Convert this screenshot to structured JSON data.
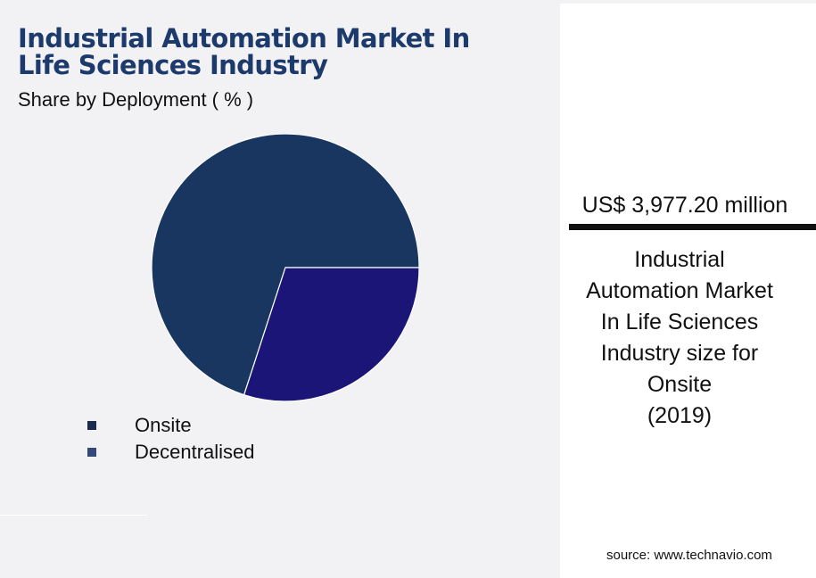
{
  "header": {
    "title_line1": "Industrial Automation Market In",
    "title_line2": "Life Sciences Industry",
    "subtitle": "Share by Deployment ( % )"
  },
  "chart_data": {
    "type": "pie",
    "categories": [
      "Onsite",
      "Decentralised"
    ],
    "values": [
      70,
      30
    ],
    "colors": [
      "#183660",
      "#1b1578"
    ],
    "start_angle_deg": 0
  },
  "legend": [
    {
      "label": "Onsite",
      "color": "#1b2a4f"
    },
    {
      "label": "Decentralised",
      "color": "#34497a"
    }
  ],
  "info_panel": {
    "value": "US$ 3,977.20 million",
    "description_lines": [
      "Industrial",
      "Automation Market",
      "In Life Sciences",
      "Industry size for",
      "Onsite",
      "(2019)"
    ],
    "source": "source: www.technavio.com"
  }
}
